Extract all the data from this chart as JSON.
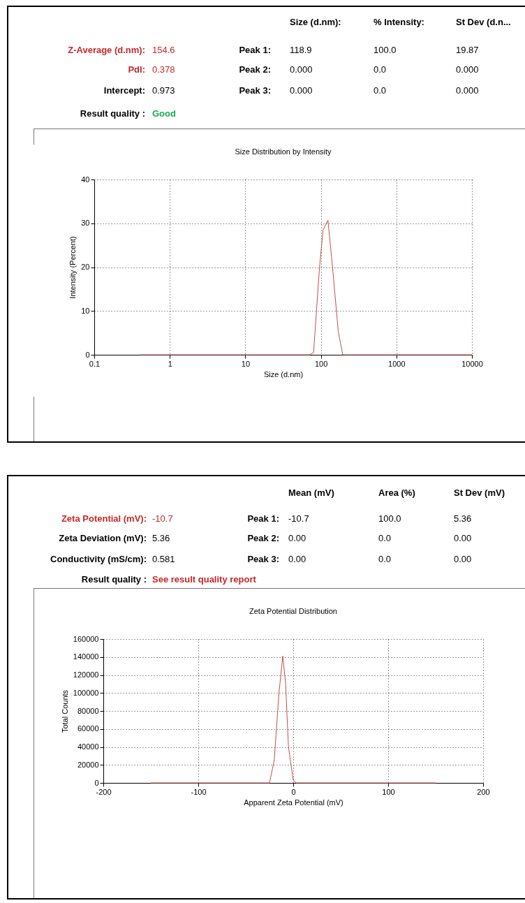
{
  "chart_data": [
    {
      "type": "other",
      "annotations": [
        "Size (d.nm):",
        "% Intensity:",
        "St Dev (d.n...",
        "Z-Average (d.nm):",
        "154.6",
        "Peak 1:",
        "118.9",
        "100.0",
        "19.87",
        "PdI:",
        "0.378",
        "Peak 2:",
        "0.000",
        "0.0",
        "0.000",
        "Intercept:",
        "0.973",
        "Peak 3:",
        "0.000",
        "0.0",
        "0.000",
        "Result quality :",
        "Good"
      ]
    },
    {
      "type": "line",
      "title": "Size Distribution by Intensity",
      "xlabel": "Size (d.nm)",
      "ylabel": "Intensity (Percent)",
      "log": "x",
      "grid": true,
      "xlim": [
        0.1,
        10000
      ],
      "xticks": [
        0.1,
        1,
        10,
        100,
        1000,
        10000
      ],
      "ylim": [
        0,
        40
      ],
      "yticks": [
        0,
        10,
        20,
        30,
        40
      ],
      "x": [
        0.4,
        1,
        10,
        71,
        80,
        96,
        107,
        124,
        141,
        170,
        195,
        1000,
        10000
      ],
      "series": [
        {
          "color": "#c0504d",
          "values": [
            0,
            0,
            0,
            0,
            0.5,
            20,
            28.5,
            30.7,
            21,
            5.3,
            0,
            0,
            0
          ]
        }
      ]
    },
    {
      "type": "other",
      "annotations": [
        "Mean (mV)",
        "Area (%)",
        "St Dev (mV)",
        "Zeta Potential (mV):",
        "-10.7",
        "Peak 1:",
        "-10.7",
        "100.0",
        "5.36",
        "Zeta Deviation (mV):",
        "5.36",
        "Peak 2:",
        "0.00",
        "0.0",
        "0.00",
        "Conductivity (mS/cm):",
        "0.581",
        "Peak 3:",
        "0.00",
        "0.0",
        "0.00",
        "Result quality :",
        "See result quality report"
      ]
    },
    {
      "type": "line",
      "title": "Zeta Potential Distribution",
      "xlabel": "Apparent Zeta Potential (mV)",
      "ylabel": "Total Counts",
      "grid": true,
      "xlim": [
        -200,
        200
      ],
      "xticks": [
        -200,
        -100,
        0,
        100,
        200
      ],
      "ylim": [
        0,
        160000
      ],
      "yticks": [
        0,
        20000,
        40000,
        60000,
        80000,
        100000,
        120000,
        140000,
        160000
      ],
      "x": [
        -150,
        -25,
        -20,
        -15,
        -11,
        -8,
        -5,
        0,
        3,
        150
      ],
      "series": [
        {
          "color": "#c0504d",
          "values": [
            0,
            0,
            25000,
            100000,
            141000,
            110000,
            40000,
            3000,
            0,
            0
          ]
        }
      ]
    }
  ]
}
